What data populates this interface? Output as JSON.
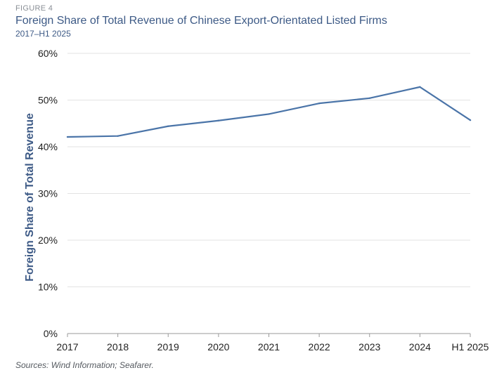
{
  "header": {
    "figure_label": "FIGURE 4",
    "title": "Foreign Share of Total Revenue of Chinese Export-Orientated Listed Firms",
    "subtitle": "2017–H1 2025"
  },
  "footer": {
    "source": "Sources: Wind Information; Seafarer."
  },
  "chart_data": {
    "type": "line",
    "title": "Foreign Share of Total Revenue of Chinese Export-Orientated Listed Firms",
    "subtitle": "2017–H1 2025",
    "xlabel": "",
    "ylabel": "Foreign Share of Total Revenue",
    "categories": [
      "2017",
      "2018",
      "2019",
      "2020",
      "2021",
      "2022",
      "2023",
      "2024",
      "H1 2025"
    ],
    "series": [
      {
        "values": [
          42.1,
          42.3,
          44.4,
          45.6,
          47.0,
          49.3,
          50.4,
          52.8,
          45.7
        ],
        "color": "#4a74a8"
      }
    ],
    "ylim": [
      0,
      60
    ],
    "yticks": [
      0,
      10,
      20,
      30,
      40,
      50,
      60
    ],
    "ytick_labels": [
      "0%",
      "10%",
      "20%",
      "30%",
      "40%",
      "50%",
      "60%"
    ],
    "grid": true,
    "legend": "none"
  }
}
